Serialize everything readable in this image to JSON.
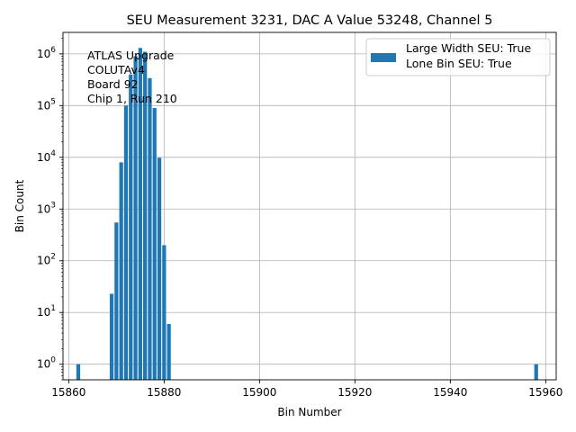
{
  "chart_data": {
    "type": "bar",
    "title": "SEU Measurement 3231, DAC A Value 53248, Channel 5",
    "xlabel": "Bin Number",
    "ylabel": "Bin Count",
    "yscale": "log",
    "xlim": [
      15858.8,
      15962.2
    ],
    "ylim": [
      0.5,
      2600000
    ],
    "grid": true,
    "legend_placement": "top-right",
    "bar_color": "#1f77b4",
    "bar_width": 0.8,
    "x_ticks": [
      15860,
      15880,
      15900,
      15920,
      15940,
      15960
    ],
    "x_tick_labels": [
      "15860",
      "15880",
      "15900",
      "15920",
      "15940",
      "15960"
    ],
    "y_ticks": [
      {
        "value": 1,
        "base": "10",
        "exp": "0"
      },
      {
        "value": 10,
        "base": "10",
        "exp": "1"
      },
      {
        "value": 100,
        "base": "10",
        "exp": "2"
      },
      {
        "value": 1000,
        "base": "10",
        "exp": "3"
      },
      {
        "value": 10000,
        "base": "10",
        "exp": "4"
      },
      {
        "value": 100000,
        "base": "10",
        "exp": "5"
      },
      {
        "value": 1000000,
        "base": "10",
        "exp": "6"
      }
    ],
    "annotation_lines": [
      "ATLAS Upgrade",
      "COLUTAv4",
      " Board 92",
      "Chip 1, Run 210"
    ],
    "legend_lines": [
      "Large Width SEU: True",
      "Lone Bin SEU: True"
    ],
    "x": [
      15862,
      15869,
      15870,
      15871,
      15872,
      15873,
      15874,
      15875,
      15876,
      15877,
      15878,
      15879,
      15880,
      15881,
      15958
    ],
    "values": [
      1,
      23,
      550,
      8000,
      100000,
      400000,
      900000,
      1300000,
      1100000,
      340000,
      90000,
      9800,
      200,
      6,
      1
    ]
  }
}
